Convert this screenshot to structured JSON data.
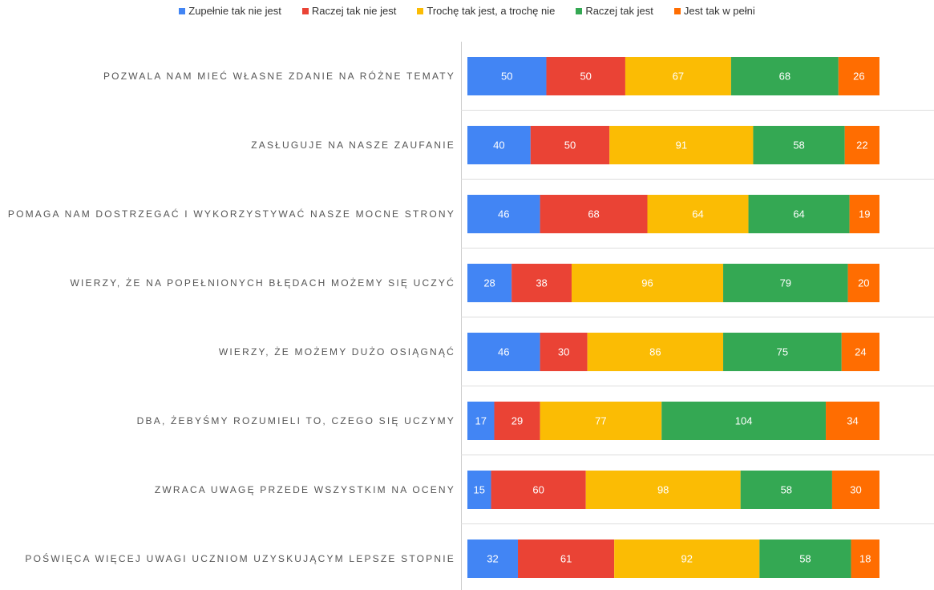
{
  "chart_data": {
    "type": "stacked-bar-horizontal",
    "categories": [
      "POZWALA NAM MIEĆ WŁASNE ZDANIE NA RÓŻNE TEMATY",
      "ZASŁUGUJE NA NASZE ZAUFANIE",
      "POMAGA NAM DOSTRZEGAĆ I WYKORZYSTYWAĆ NASZE MOCNE STRONY",
      "WIERZY, ŻE NA POPEŁNIONYCH BŁĘDACH MOŻEMY SIĘ UCZYĆ",
      "WIERZY, ŻE MOŻEMY DUŻO OSIĄGNĄĆ",
      "DBA, ŻEBYŚMY ROZUMIELI TO, CZEGO SIĘ UCZYMY",
      "ZWRACA UWAGĘ PRZEDE WSZYSTKIM NA OCENY",
      "POŚWIĘCA WIĘCEJ UWAGI UCZNIOM UZYSKUJĄCYM LEPSZE STOPNIE"
    ],
    "series": [
      {
        "name": "Zupełnie tak nie jest",
        "color": "#4285f4",
        "values": [
          50,
          40,
          46,
          28,
          46,
          17,
          15,
          32
        ]
      },
      {
        "name": "Raczej tak nie jest",
        "color": "#ea4335",
        "values": [
          50,
          50,
          68,
          38,
          30,
          29,
          60,
          61
        ]
      },
      {
        "name": "Trochę tak jest, a trochę nie",
        "color": "#fbbc04",
        "values": [
          67,
          91,
          64,
          96,
          86,
          77,
          98,
          92
        ]
      },
      {
        "name": "Raczej tak jest",
        "color": "#34a853",
        "values": [
          68,
          58,
          64,
          79,
          75,
          104,
          58,
          58
        ]
      },
      {
        "name": "Jest tak w pełni",
        "color": "#ff6d01",
        "values": [
          26,
          22,
          19,
          20,
          24,
          34,
          30,
          18
        ]
      }
    ],
    "legend": "top"
  }
}
